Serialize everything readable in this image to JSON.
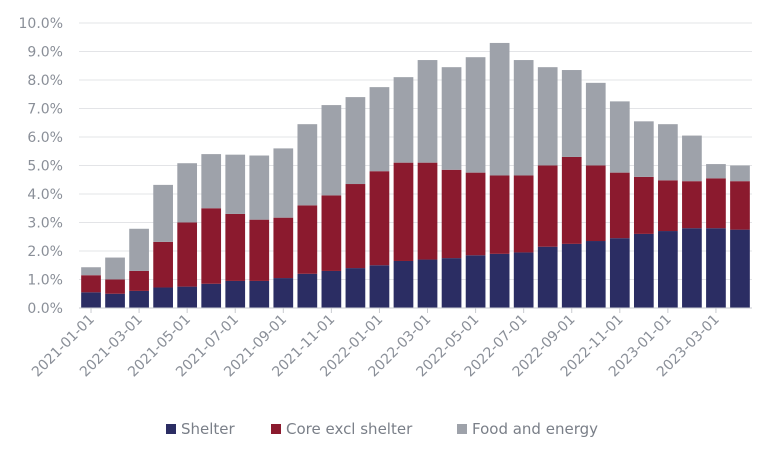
{
  "chart_data": {
    "type": "bar",
    "stacked": true,
    "title": "",
    "xlabel": "",
    "ylabel": "",
    "ylim": [
      0,
      10
    ],
    "y_tick_values": [
      0,
      1,
      2,
      3,
      4,
      5,
      6,
      7,
      8,
      9,
      10
    ],
    "y_tick_labels": [
      "0.0%",
      "1.0%",
      "2.0%",
      "3.0%",
      "4.0%",
      "5.0%",
      "6.0%",
      "7.0%",
      "8.0%",
      "9.0%",
      "10.0%"
    ],
    "categories": [
      "2021-01-01",
      "2021-02-01",
      "2021-03-01",
      "2021-04-01",
      "2021-05-01",
      "2021-06-01",
      "2021-07-01",
      "2021-08-01",
      "2021-09-01",
      "2021-10-01",
      "2021-11-01",
      "2021-12-01",
      "2022-01-01",
      "2022-02-01",
      "2022-03-01",
      "2022-04-01",
      "2022-05-01",
      "2022-06-01",
      "2022-07-01",
      "2022-08-01",
      "2022-09-01",
      "2022-10-01",
      "2022-11-01",
      "2022-12-01",
      "2023-01-01",
      "2023-02-01",
      "2023-03-01",
      "2023-04-01"
    ],
    "x_tick_labels": [
      "2021-01-01",
      "2021-03-01",
      "2021-05-01",
      "2021-07-01",
      "2021-09-01",
      "2021-11-01",
      "2022-01-01",
      "2022-03-01",
      "2022-05-01",
      "2022-07-01",
      "2022-09-01",
      "2022-11-01",
      "2023-01-01",
      "2023-03-01"
    ],
    "series": [
      {
        "name": "Shelter",
        "color": "#2b2d63",
        "values": [
          0.55,
          0.5,
          0.6,
          0.72,
          0.75,
          0.85,
          0.95,
          0.95,
          1.05,
          1.2,
          1.3,
          1.4,
          1.5,
          1.65,
          1.7,
          1.75,
          1.85,
          1.9,
          1.95,
          2.15,
          2.25,
          2.35,
          2.45,
          2.6,
          2.7,
          2.8,
          2.8,
          2.75
        ]
      },
      {
        "name": "Core excl shelter",
        "color": "#8b1a2e",
        "values": [
          0.6,
          0.5,
          0.7,
          1.6,
          2.25,
          2.65,
          2.35,
          2.15,
          2.12,
          2.4,
          2.65,
          2.95,
          3.3,
          3.45,
          3.4,
          3.1,
          2.9,
          2.75,
          2.7,
          2.85,
          3.05,
          2.65,
          2.3,
          2.0,
          1.78,
          1.65,
          1.75,
          1.7
        ]
      },
      {
        "name": "Food and energy",
        "color": "#9ea2aa",
        "values": [
          0.28,
          0.77,
          1.48,
          2.0,
          2.08,
          1.9,
          2.08,
          2.25,
          2.43,
          2.85,
          3.17,
          3.05,
          2.95,
          3.0,
          3.6,
          3.6,
          4.05,
          4.65,
          4.05,
          3.45,
          3.05,
          2.9,
          2.5,
          1.95,
          1.97,
          1.6,
          0.5,
          0.55
        ]
      }
    ],
    "legend_position": "bottom",
    "grid": true
  }
}
